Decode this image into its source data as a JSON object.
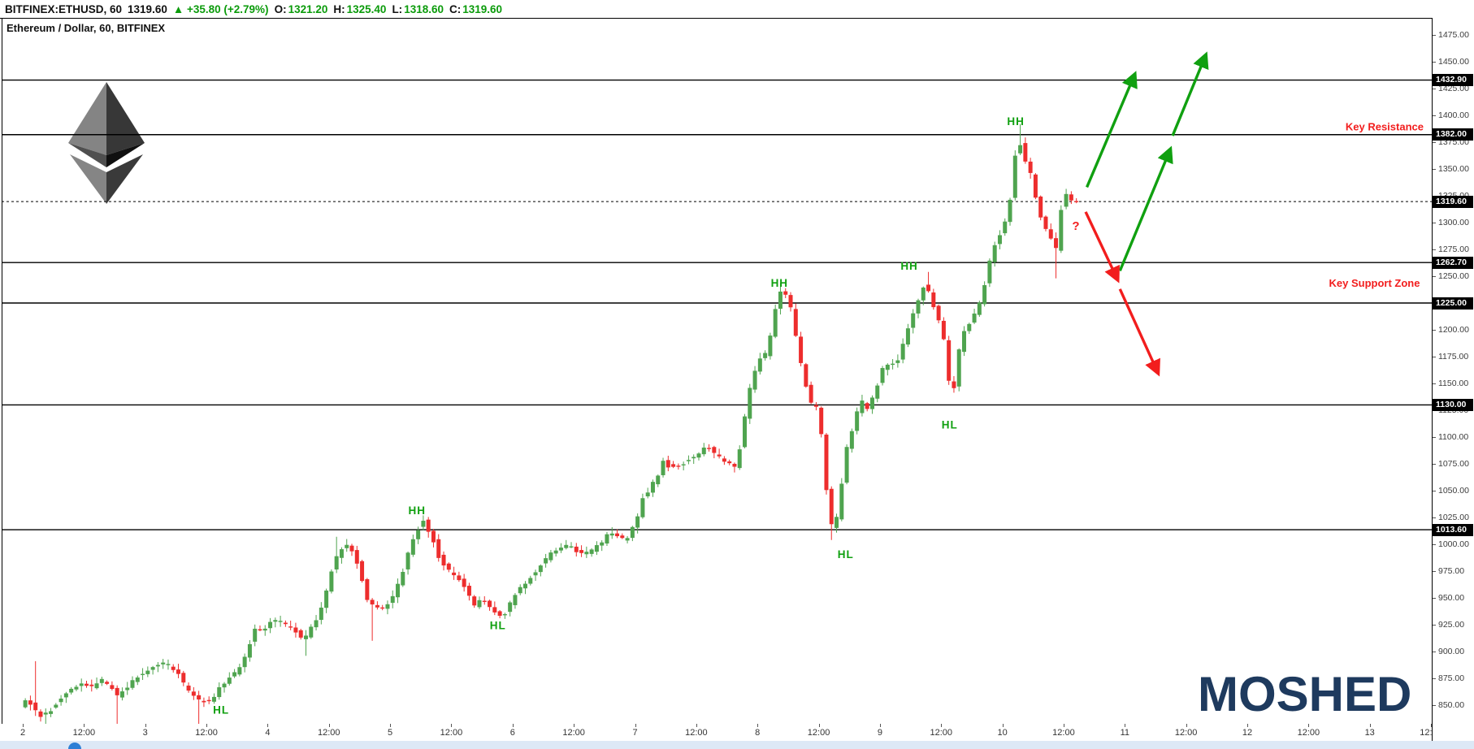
{
  "header": {
    "symbol": "BITFINEX:ETHUSD, 60",
    "last_price": "1319.60",
    "change_arrow": "▲",
    "change_text": "+35.80 (+2.79%)",
    "ohlc": [
      {
        "label": "O:",
        "value": "1321.20"
      },
      {
        "label": "H:",
        "value": "1325.40"
      },
      {
        "label": "L:",
        "value": "1318.60"
      },
      {
        "label": "C:",
        "value": "1319.60"
      }
    ]
  },
  "chart_title": "Ethereum / Dollar, 60, BITFINEX",
  "watermark_text": "MOSHED",
  "annotations": {
    "resistance_label": "Key Resistance",
    "support_label": "Key Support Zone",
    "question_mark": "?"
  },
  "colors": {
    "candle_up": "#4fa44f",
    "candle_down": "#ed2d2d",
    "swing_green": "#10a010",
    "arrow_green": "#10a010",
    "arrow_red": "#f21d1d",
    "annotation_red": "#f21d1d",
    "header_green": "#0b9b0b",
    "badge_bg": "#000000",
    "badge_text": "#ffffff",
    "watermark_navy": "#1e3a5e",
    "footer_strip": "#dde8f6",
    "footer_icon_blue": "#2d7fd6"
  },
  "chart_data": {
    "type": "candlestick",
    "symbol": "BITFINEX:ETHUSD",
    "interval_minutes": 60,
    "title": "Ethereum / Dollar, 60, BITFINEX",
    "y_axis": {
      "min": 850,
      "max": 1475,
      "tick_step": 25,
      "unit": "USD"
    },
    "x_axis": {
      "day_labels": [
        "2",
        "3",
        "4",
        "5",
        "6",
        "7",
        "8",
        "9",
        "10",
        "11",
        "12",
        "13"
      ],
      "half_day_label": "12:00",
      "has_clipped_trailing_label": true
    },
    "levels": [
      {
        "price": 1432.9,
        "label": "1432.90",
        "style": "solid"
      },
      {
        "price": 1382.0,
        "label": "1382.00",
        "style": "solid",
        "note": "Key Resistance"
      },
      {
        "price": 1319.6,
        "label": "1319.60",
        "style": "dotted",
        "note": "current price"
      },
      {
        "price": 1262.7,
        "label": "1262.70",
        "style": "solid"
      },
      {
        "price": 1225.0,
        "label": "1225.00",
        "style": "solid",
        "note": "Key Support Zone"
      },
      {
        "price": 1130.0,
        "label": "1130.00",
        "style": "solid"
      },
      {
        "price": 1013.6,
        "label": "1013.60",
        "style": "solid"
      }
    ],
    "swing_labels": [
      {
        "text": "HL",
        "day": 3.62,
        "price": 845
      },
      {
        "text": "HH",
        "day": 5.22,
        "price": 1031
      },
      {
        "text": "HL",
        "day": 5.88,
        "price": 924
      },
      {
        "text": "HH",
        "day": 8.18,
        "price": 1243
      },
      {
        "text": "HL",
        "day": 8.72,
        "price": 990
      },
      {
        "text": "HH",
        "day": 9.24,
        "price": 1259
      },
      {
        "text": "HL",
        "day": 9.57,
        "price": 1111
      },
      {
        "text": "HH",
        "day": 10.11,
        "price": 1394
      }
    ],
    "question_mark": {
      "day": 10.6,
      "price": 1297
    },
    "annotation_anchors": {
      "resistance": {
        "day": 13.44,
        "price": 1389
      },
      "support": {
        "day": 13.41,
        "price": 1243
      }
    },
    "trend_arrows": [
      {
        "color": "green",
        "from": [
          10.69,
          1333
        ],
        "to": [
          11.08,
          1438
        ]
      },
      {
        "color": "green",
        "from": [
          10.96,
          1255
        ],
        "to": [
          11.37,
          1368
        ]
      },
      {
        "color": "green",
        "from": [
          11.39,
          1381
        ],
        "to": [
          11.66,
          1456
        ]
      },
      {
        "color": "red",
        "from": [
          10.68,
          1310
        ],
        "to": [
          10.94,
          1247
        ]
      },
      {
        "color": "red",
        "from": [
          10.96,
          1238
        ],
        "to": [
          11.27,
          1160
        ]
      }
    ],
    "last_close": 1319.6,
    "candle_interval_days": 0.0416667,
    "price_path": [
      [
        2.0,
        848
      ],
      [
        2.04,
        856
      ],
      [
        2.08,
        852
      ],
      [
        2.12,
        844
      ],
      [
        2.17,
        840
      ],
      [
        2.22,
        842
      ],
      [
        2.28,
        850
      ],
      [
        2.35,
        858
      ],
      [
        2.42,
        864
      ],
      [
        2.5,
        871
      ],
      [
        2.56,
        866
      ],
      [
        2.62,
        869
      ],
      [
        2.68,
        874
      ],
      [
        2.74,
        866
      ],
      [
        2.79,
        858
      ],
      [
        2.84,
        864
      ],
      [
        2.9,
        870
      ],
      [
        2.96,
        877
      ],
      [
        3.03,
        882
      ],
      [
        3.1,
        887
      ],
      [
        3.17,
        890
      ],
      [
        3.23,
        886
      ],
      [
        3.29,
        880
      ],
      [
        3.35,
        866
      ],
      [
        3.42,
        858
      ],
      [
        3.5,
        853
      ],
      [
        3.57,
        856
      ],
      [
        3.63,
        866
      ],
      [
        3.7,
        876
      ],
      [
        3.76,
        880
      ],
      [
        3.82,
        890
      ],
      [
        3.88,
        910
      ],
      [
        3.93,
        924
      ],
      [
        3.97,
        918
      ],
      [
        4.02,
        926
      ],
      [
        4.08,
        930
      ],
      [
        4.14,
        926
      ],
      [
        4.2,
        924
      ],
      [
        4.26,
        917
      ],
      [
        4.31,
        910
      ],
      [
        4.37,
        922
      ],
      [
        4.43,
        932
      ],
      [
        4.48,
        945
      ],
      [
        4.53,
        972
      ],
      [
        4.58,
        988
      ],
      [
        4.63,
        996
      ],
      [
        4.68,
        999
      ],
      [
        4.73,
        990
      ],
      [
        4.78,
        972
      ],
      [
        4.83,
        950
      ],
      [
        4.89,
        941
      ],
      [
        4.95,
        938
      ],
      [
        5.0,
        944
      ],
      [
        5.06,
        956
      ],
      [
        5.12,
        974
      ],
      [
        5.18,
        996
      ],
      [
        5.24,
        1013
      ],
      [
        5.29,
        1022
      ],
      [
        5.33,
        1014
      ],
      [
        5.38,
        1002
      ],
      [
        5.43,
        984
      ],
      [
        5.49,
        976
      ],
      [
        5.55,
        972
      ],
      [
        5.61,
        963
      ],
      [
        5.67,
        950
      ],
      [
        5.72,
        941
      ],
      [
        5.77,
        950
      ],
      [
        5.82,
        944
      ],
      [
        5.88,
        936
      ],
      [
        5.93,
        932
      ],
      [
        5.98,
        940
      ],
      [
        6.04,
        953
      ],
      [
        6.1,
        961
      ],
      [
        6.17,
        970
      ],
      [
        6.24,
        980
      ],
      [
        6.31,
        989
      ],
      [
        6.38,
        995
      ],
      [
        6.45,
        999
      ],
      [
        6.52,
        996
      ],
      [
        6.59,
        991
      ],
      [
        6.66,
        994
      ],
      [
        6.73,
        999
      ],
      [
        6.79,
        1008
      ],
      [
        6.85,
        1011
      ],
      [
        6.91,
        1004
      ],
      [
        6.97,
        1007
      ],
      [
        7.03,
        1022
      ],
      [
        7.08,
        1043
      ],
      [
        7.14,
        1052
      ],
      [
        7.2,
        1062
      ],
      [
        7.25,
        1079
      ],
      [
        7.31,
        1071
      ],
      [
        7.37,
        1074
      ],
      [
        7.43,
        1077
      ],
      [
        7.49,
        1080
      ],
      [
        7.55,
        1086
      ],
      [
        7.61,
        1091
      ],
      [
        7.67,
        1084
      ],
      [
        7.73,
        1079
      ],
      [
        7.79,
        1077
      ],
      [
        7.84,
        1070
      ],
      [
        7.89,
        1098
      ],
      [
        7.94,
        1135
      ],
      [
        7.99,
        1160
      ],
      [
        8.04,
        1172
      ],
      [
        8.09,
        1178
      ],
      [
        8.14,
        1200
      ],
      [
        8.19,
        1237
      ],
      [
        8.24,
        1236
      ],
      [
        8.29,
        1221
      ],
      [
        8.34,
        1190
      ],
      [
        8.4,
        1155
      ],
      [
        8.46,
        1130
      ],
      [
        8.52,
        1127
      ],
      [
        8.56,
        1080
      ],
      [
        8.61,
        1020
      ],
      [
        8.65,
        1012
      ],
      [
        8.7,
        1050
      ],
      [
        8.75,
        1090
      ],
      [
        8.81,
        1112
      ],
      [
        8.86,
        1135
      ],
      [
        8.92,
        1127
      ],
      [
        8.98,
        1143
      ],
      [
        9.04,
        1163
      ],
      [
        9.1,
        1168
      ],
      [
        9.16,
        1171
      ],
      [
        9.22,
        1190
      ],
      [
        9.28,
        1212
      ],
      [
        9.33,
        1228
      ],
      [
        9.38,
        1242
      ],
      [
        9.43,
        1233
      ],
      [
        9.48,
        1212
      ],
      [
        9.53,
        1203
      ],
      [
        9.57,
        1165
      ],
      [
        9.61,
        1131
      ],
      [
        9.65,
        1172
      ],
      [
        9.7,
        1196
      ],
      [
        9.76,
        1209
      ],
      [
        9.82,
        1219
      ],
      [
        9.88,
        1244
      ],
      [
        9.93,
        1270
      ],
      [
        9.98,
        1287
      ],
      [
        10.03,
        1294
      ],
      [
        10.08,
        1318
      ],
      [
        10.12,
        1360
      ],
      [
        10.15,
        1379
      ],
      [
        10.18,
        1370
      ],
      [
        10.22,
        1352
      ],
      [
        10.26,
        1344
      ],
      [
        10.3,
        1318
      ],
      [
        10.34,
        1303
      ],
      [
        10.38,
        1292
      ],
      [
        10.42,
        1284
      ],
      [
        10.45,
        1266
      ],
      [
        10.49,
        1308
      ],
      [
        10.53,
        1329
      ],
      [
        10.58,
        1320
      ]
    ],
    "wick_spikes": [
      [
        2.09,
        891
      ],
      [
        2.2,
        831
      ],
      [
        2.79,
        832
      ],
      [
        3.43,
        832
      ],
      [
        4.31,
        896
      ],
      [
        4.56,
        1007
      ],
      [
        4.84,
        910
      ],
      [
        5.29,
        1027
      ],
      [
        6.8,
        1016
      ],
      [
        8.19,
        1244
      ],
      [
        8.62,
        1004
      ],
      [
        9.38,
        1254
      ],
      [
        9.58,
        1152
      ],
      [
        10.14,
        1392
      ],
      [
        10.45,
        1248
      ]
    ]
  }
}
